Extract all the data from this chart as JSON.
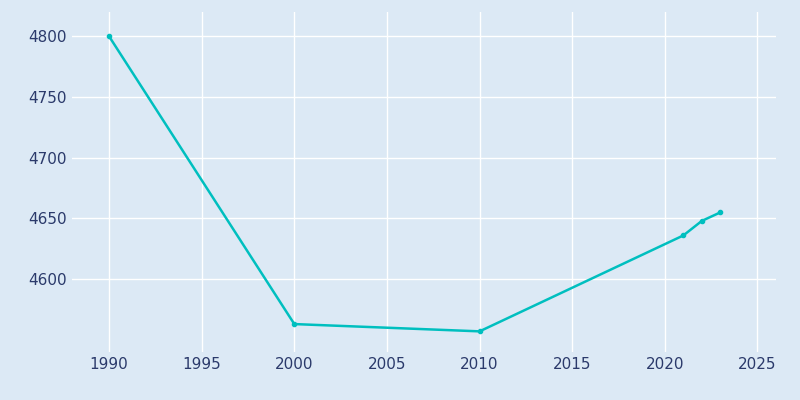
{
  "years": [
    1990,
    2000,
    2010,
    2021,
    2022,
    2023
  ],
  "population": [
    4800,
    4563,
    4557,
    4636,
    4648,
    4655
  ],
  "line_color": "#00BFBF",
  "marker_color": "#00BFBF",
  "bg_color": "#dce9f5",
  "plot_bg_color": "#dce9f5",
  "text_color": "#2b3a6b",
  "xlim": [
    1988,
    2026
  ],
  "ylim": [
    4540,
    4820
  ],
  "xticks": [
    1990,
    1995,
    2000,
    2005,
    2010,
    2015,
    2020,
    2025
  ],
  "yticks": [
    4600,
    4650,
    4700,
    4750,
    4800
  ],
  "grid_color": "#ffffff",
  "marker_size": 3,
  "line_width": 1.8
}
